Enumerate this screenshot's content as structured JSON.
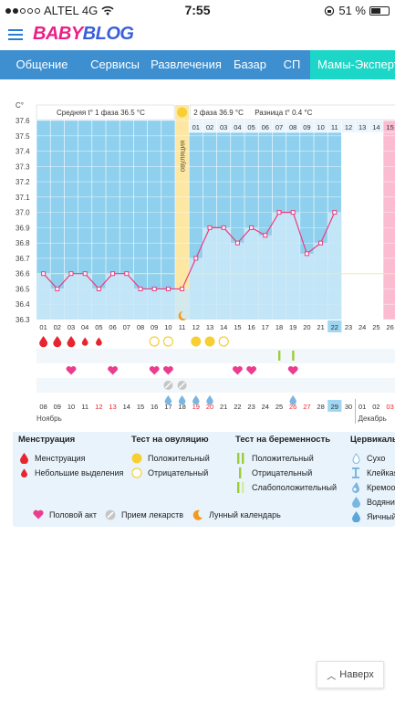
{
  "status_bar": {
    "carrier": "ALTEL 4G",
    "time": "7:55",
    "battery": "51 %"
  },
  "header": {
    "logo_a": "BABY",
    "logo_b": "BLOG"
  },
  "nav": {
    "items": [
      "Общение",
      "Сервисы",
      "Развлечения",
      "Базар",
      "СП",
      "Мамы-Эксперт"
    ],
    "active_index": 5
  },
  "chart": {
    "unit": "C°",
    "phase1": "Средняя t° 1 фаза 36.5 °C",
    "phase2": "2 фаза 36.9 °C",
    "diff": "Разница t° 0.4 °C",
    "ovulation": "овуляция",
    "cycle_days": [
      "01",
      "02",
      "03",
      "04",
      "05",
      "06",
      "07",
      "08",
      "09",
      "10",
      "11",
      "12",
      "13",
      "14",
      "15",
      "16",
      "17",
      "18",
      "19",
      "20",
      "21",
      "22",
      "23",
      "24",
      "25",
      "26"
    ],
    "top_days": [
      "01",
      "02",
      "03",
      "04",
      "05",
      "06",
      "07",
      "08",
      "09",
      "10",
      "11",
      "12",
      "13",
      "14",
      "15"
    ],
    "highlight_cycle_day": "22",
    "bottom_days": [
      "08",
      "09",
      "10",
      "11",
      "12",
      "13",
      "14",
      "15",
      "16",
      "17",
      "18",
      "19",
      "20",
      "21",
      "22",
      "23",
      "24",
      "25",
      "26",
      "27",
      "28",
      "29",
      "30",
      "01",
      "02",
      "03"
    ],
    "red_days": [
      "12",
      "13",
      "19",
      "20",
      "26",
      "27",
      "03"
    ],
    "highlight_date": "29",
    "month_left": "Ноябрь",
    "month_right": "Декабрь",
    "colors": {
      "blue_area": "#8fd0ee",
      "curve": "#ec3c80",
      "ovulation": "#fde7a3",
      "pink": "#fbbcd1"
    },
    "chart_data": {
      "type": "line",
      "x": [
        1,
        2,
        3,
        4,
        5,
        6,
        7,
        8,
        9,
        10,
        11,
        12,
        13,
        14,
        15,
        16,
        17,
        18,
        19,
        20,
        21,
        22
      ],
      "y": [
        36.6,
        36.5,
        36.6,
        36.6,
        36.5,
        36.6,
        36.6,
        36.5,
        36.5,
        36.5,
        36.5,
        36.7,
        36.9,
        36.9,
        36.8,
        36.9,
        36.85,
        37.0,
        37.0,
        36.73,
        36.8,
        37.0
      ],
      "coverline": 36.6,
      "ylim": [
        36.3,
        37.6
      ],
      "yticks": [
        "37.6",
        "37.5",
        "37.4",
        "37.3",
        "37.2",
        "37.1",
        "37.0",
        "36.9",
        "36.8",
        "36.7",
        "36.6",
        "36.5",
        "36.4",
        "36.3"
      ],
      "ovulation_day": 11
    },
    "marks": {
      "menstruation": [
        1,
        2,
        3
      ],
      "light_bleeding": [
        4,
        5
      ],
      "ovulation_negative": [
        9,
        10,
        14
      ],
      "ovulation_positive": [
        12,
        13
      ],
      "pregnancy_positive": [
        18,
        19
      ],
      "intercourse": [
        3,
        6,
        9,
        10,
        15,
        16,
        19
      ],
      "medication": [
        10,
        11
      ],
      "cervical_mucus": [
        10,
        11,
        12,
        13,
        19
      ]
    }
  },
  "legend": {
    "menses_title": "Менструация",
    "menses_1": "Менструация",
    "menses_2": "Небольшие выделения",
    "ovul_title": "Тест на овуляцию",
    "ovul_1": "Положительный",
    "ovul_2": "Отрицательный",
    "preg_title": "Тест на беременность",
    "preg_1": "Положительный",
    "preg_2": "Отрицательный",
    "preg_3": "Слабоположительный",
    "cerv_title": "Цервикаль",
    "cerv_1": "Сухо",
    "cerv_2": "Клейкая",
    "cerv_3": "Кремообр",
    "cerv_4": "Водяни",
    "cerv_5": "Яичный",
    "b1": "Половой акт",
    "b2": "Прием лекарств",
    "b3": "Лунный календарь"
  },
  "next_button": "Наверх"
}
